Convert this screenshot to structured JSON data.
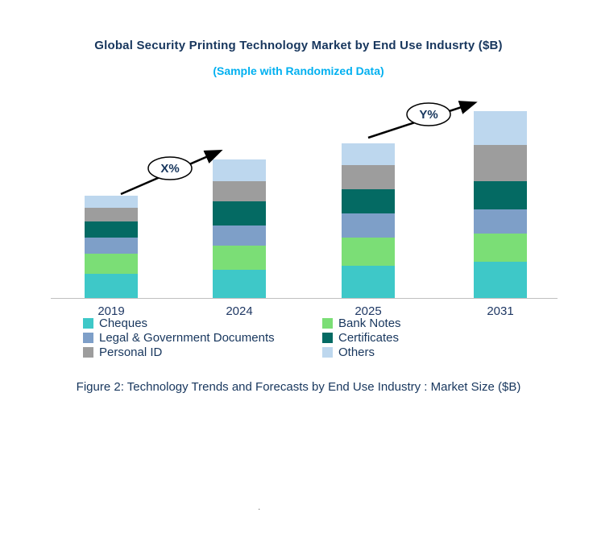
{
  "title": "Global Security Printing Technology Market by End Use Indusrty ($B)",
  "subtitle": "(Sample with Randomized Data)",
  "caption": "Figure 2: Technology  Trends  and Forecasts by End Use Industry  : Market Size ($B)",
  "stray_dot": ".",
  "colors": {
    "title_text": "#17365D",
    "subtitle_text": "#00B0F0",
    "axis_label_text": "#1F3864",
    "legend_text": "#17365D",
    "axis_line": "#BFBFBF",
    "arrow": "#000000"
  },
  "chart_data": {
    "type": "bar",
    "stacked": true,
    "title": "Global Security Printing Technology Market by End Use Indusrty ($B)",
    "subtitle": "(Sample with Randomized Data)",
    "xlabel": "",
    "ylabel": "Market Size ($B)",
    "y_axis_visible": false,
    "grid": false,
    "legend_position": "bottom",
    "ylim": [
      0,
      24
    ],
    "categories": [
      "2019",
      "2024",
      "2025",
      "2031"
    ],
    "series": [
      {
        "name": "Cheques",
        "color": "#3EC8C8",
        "values": [
          3.0,
          3.5,
          4.0,
          4.5
        ]
      },
      {
        "name": "Bank Notes",
        "color": "#7BDE76",
        "values": [
          2.5,
          3.0,
          3.5,
          3.5
        ]
      },
      {
        "name": "Legal & Government Documents",
        "color": "#7E9FC8",
        "values": [
          2.0,
          2.5,
          3.0,
          3.0
        ]
      },
      {
        "name": "Certificates",
        "color": "#046A63",
        "values": [
          2.0,
          3.0,
          3.0,
          3.5
        ]
      },
      {
        "name": "Personal ID",
        "color": "#9D9D9D",
        "values": [
          1.7,
          2.5,
          3.0,
          4.5
        ]
      },
      {
        "name": "Others",
        "color": "#BDD7EE",
        "values": [
          1.5,
          2.7,
          2.7,
          4.2
        ]
      }
    ],
    "annotations": [
      {
        "label": "X%",
        "from_category": "2019",
        "to_category": "2024"
      },
      {
        "label": "Y%",
        "from_category": "2025",
        "to_category": "2031"
      }
    ]
  }
}
